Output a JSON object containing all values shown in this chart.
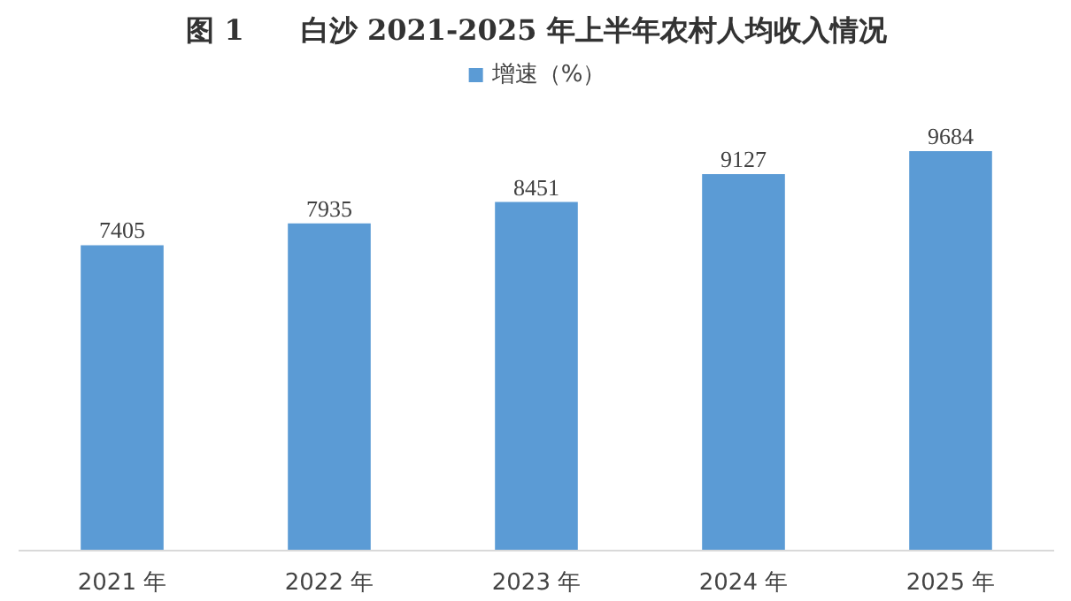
{
  "chart_data": {
    "type": "bar",
    "title": "图 1　　白沙 2021-2025 年上半年农村人均收入情况",
    "categories": [
      "2021 年",
      "2022 年",
      "2023 年",
      "2024 年",
      "2025 年"
    ],
    "series": [
      {
        "name": "增速（%）",
        "color": "#5b9bd5",
        "values": [
          7405,
          7935,
          8451,
          9127,
          9684
        ]
      }
    ],
    "ylim": [
      0,
      12000
    ],
    "tick_labels": "x",
    "data_labels": true,
    "legend": "top",
    "grid": false
  }
}
